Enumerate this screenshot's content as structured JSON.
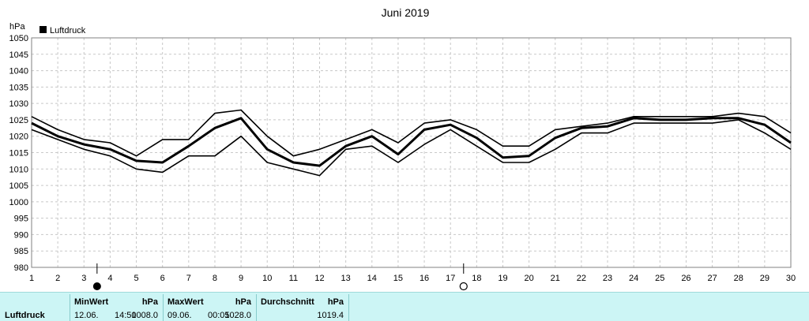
{
  "chart_data": {
    "type": "line",
    "title": "Juni 2019",
    "ylabel": "hPa",
    "xlabel": "",
    "ylim": [
      980,
      1050
    ],
    "xlim": [
      1,
      30
    ],
    "yticks": [
      980,
      985,
      990,
      995,
      1000,
      1005,
      1010,
      1015,
      1020,
      1025,
      1030,
      1035,
      1040,
      1045,
      1050
    ],
    "xticks": [
      1,
      2,
      3,
      4,
      5,
      6,
      7,
      8,
      9,
      10,
      11,
      12,
      13,
      14,
      15,
      16,
      17,
      18,
      19,
      20,
      21,
      22,
      23,
      24,
      25,
      26,
      27,
      28,
      29,
      30
    ],
    "grid": true,
    "legend": "top-left",
    "legend_entries": [
      "Luftdruck"
    ],
    "x": [
      1,
      2,
      3,
      4,
      5,
      6,
      7,
      8,
      9,
      10,
      11,
      12,
      13,
      14,
      15,
      16,
      17,
      18,
      19,
      20,
      21,
      22,
      23,
      24,
      25,
      26,
      27,
      28,
      29,
      30
    ],
    "series": [
      {
        "name": "Luftdruck",
        "values": [
          1024,
          1020,
          1017.5,
          1016,
          1012.5,
          1012,
          1017,
          1022.5,
          1025.5,
          1016,
          1012,
          1011,
          1017,
          1020,
          1014.5,
          1022,
          1023.5,
          1019.5,
          1013.5,
          1014,
          1019.5,
          1022.5,
          1023,
          1025.5,
          1025,
          1025,
          1025.5,
          1025.5,
          1023.5,
          1018
        ],
        "role": "mean"
      },
      {
        "values": [
          1026,
          1022,
          1019,
          1018,
          1014,
          1019,
          1019,
          1027,
          1028,
          1020,
          1014,
          1016,
          1019,
          1022,
          1018,
          1024,
          1025,
          1022,
          1017,
          1017,
          1022,
          1023,
          1024,
          1026,
          1026,
          1026,
          1026,
          1027,
          1026,
          1021
        ],
        "role": "max"
      },
      {
        "values": [
          1022,
          1019,
          1016,
          1014,
          1010,
          1009,
          1014,
          1014,
          1020,
          1012,
          1010,
          1008,
          1016,
          1017,
          1012,
          1017.5,
          1022,
          1017,
          1012,
          1012,
          1016,
          1021,
          1021,
          1024,
          1024,
          1024,
          1024,
          1025,
          1021,
          1016
        ]
      }
    ],
    "moon_phases": [
      {
        "day": 3.5,
        "phase": "new-moon"
      },
      {
        "day": 17.5,
        "phase": "full-moon"
      }
    ],
    "colors": {
      "lines": "#000000",
      "grid": "#c8c8c8",
      "background": "#ffffff",
      "stats_bg": "#ccf5f5"
    }
  },
  "stats": {
    "label": "Luftdruck",
    "min": {
      "header": "MinWert",
      "unit": "hPa",
      "date": "12.06.",
      "time": "14:50",
      "value": "1008.0"
    },
    "max": {
      "header": "MaxWert",
      "unit": "hPa",
      "date": "09.06.",
      "time": "00:05",
      "value": "1028.0"
    },
    "avg": {
      "header": "Durchschnitt",
      "unit": "hPa",
      "value": "1019.4"
    }
  }
}
